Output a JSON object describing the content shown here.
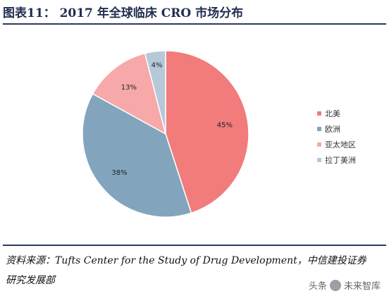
{
  "figure": {
    "title": "图表11：  2017 年全球临床 CRO 市场分布"
  },
  "chart_data": {
    "type": "pie",
    "categories": [
      "北美",
      "欧洲",
      "亚太地区",
      "拉丁美洲"
    ],
    "values": [
      45,
      38,
      13,
      4
    ],
    "labels": [
      "45%",
      "38%",
      "13%",
      "4%"
    ],
    "colors": [
      "#f27b7b",
      "#82a5bd",
      "#f7a9a9",
      "#b6c9d9"
    ],
    "legend_position": "right"
  },
  "source": {
    "text": "资料来源：Tufts Center for the Study of Drug Development，中信建投证券研究发展部"
  },
  "watermark": {
    "text_prefix": "头条",
    "text_suffix": "未来智库"
  }
}
